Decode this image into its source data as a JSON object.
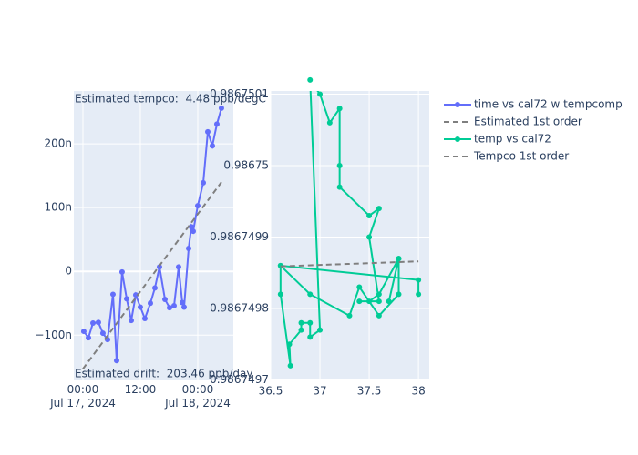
{
  "chart_data": [
    {
      "type": "line",
      "x_type": "date",
      "legend": "right",
      "grid": true,
      "xlim": [
        "2024-07-16T22:06",
        "2024-07-18T07:26"
      ],
      "xticks": [
        {
          "value": "2024-07-17T00:00",
          "label": "00:00\nJul 17, 2024"
        },
        {
          "value": "2024-07-17T12:00",
          "label": "12:00"
        },
        {
          "value": "2024-07-18T00:00",
          "label": "00:00\nJul 18, 2024"
        }
      ],
      "ylim": [
        -171,
        283
      ],
      "yticks": [
        {
          "value": -100,
          "label": "−100n"
        },
        0,
        {
          "value": 100,
          "label": "100n"
        },
        {
          "value": 200,
          "label": "200n"
        }
      ],
      "annotations": [
        "Estimated tempco:  4.48 ppb/degC",
        "Estimated drift:  203.46 ppb/day"
      ],
      "series": [
        {
          "name": "time vs cal72 w tempcomp",
          "color": "#636efa",
          "dash": false,
          "markers": true,
          "x": [
            "2024-07-17T00:11",
            "2024-07-17T01:09",
            "2024-07-17T02:06",
            "2024-07-17T03:14",
            "2024-07-17T04:11",
            "2024-07-17T05:09",
            "2024-07-17T06:17",
            "2024-07-17T07:03",
            "2024-07-17T08:11",
            "2024-07-17T09:09",
            "2024-07-17T10:06",
            "2024-07-17T11:03",
            "2024-07-17T12:00",
            "2024-07-17T12:57",
            "2024-07-17T14:06",
            "2024-07-17T15:03",
            "2024-07-17T16:00",
            "2024-07-17T17:09",
            "2024-07-17T18:06",
            "2024-07-17T19:03",
            "2024-07-17T20:00",
            "2024-07-17T20:46",
            "2024-07-17T21:09",
            "2024-07-17T22:06",
            "2024-07-17T22:40",
            "2024-07-17T23:03",
            "2024-07-18T00:00",
            "2024-07-18T01:09",
            "2024-07-18T02:06",
            "2024-07-18T03:03",
            "2024-07-18T04:00",
            "2024-07-18T04:57"
          ],
          "values": [
            -94,
            -104,
            -81,
            -80,
            -97,
            -107,
            -36,
            -140,
            -1,
            -43,
            -77,
            -37,
            -56,
            -74,
            -50,
            -26,
            7,
            -44,
            -57,
            -54,
            7,
            -49,
            -56,
            36,
            70,
            63,
            103,
            139,
            219,
            197,
            231,
            256
          ]
        },
        {
          "name": "Estimated 1st order",
          "color": "#7f7f7f",
          "dash": true,
          "markers": false,
          "x": [
            "2024-07-17T00:00",
            "2024-07-18T04:57"
          ],
          "values": [
            -153,
            140
          ]
        }
      ]
    },
    {
      "type": "line",
      "grid": true,
      "xlim": [
        36.5,
        38.11
      ],
      "xticks": [
        36.5,
        37,
        37.5,
        38
      ],
      "ylim": [
        0.9867496994,
        0.9867501045
      ],
      "yticks": [
        0.9867497,
        0.9867498,
        0.9867499,
        0.98675,
        0.9867501
      ],
      "series": [
        {
          "name": "temp vs cal72",
          "color": "#00cc96",
          "dash": false,
          "markers": true,
          "x": [
            36.6,
            36.6,
            36.7,
            36.69,
            36.81,
            36.81,
            36.9,
            36.9,
            37.0,
            36.9,
            37.0,
            37.1,
            37.2,
            37.2,
            37.2,
            37.5,
            37.6,
            37.5,
            37.6,
            37.4,
            37.5,
            37.6,
            37.8,
            37.7,
            37.8,
            37.8,
            37.6,
            37.4,
            37.3,
            36.9,
            36.6,
            38.0,
            38.0
          ],
          "values": [
            0.98674986,
            0.98674982,
            0.98674972,
            0.98674975,
            0.98674977,
            0.98674978,
            0.98674978,
            0.98674976,
            0.98674977,
            0.98675012,
            0.9867501,
            0.98675006,
            0.98675008,
            0.98675,
            0.98674997,
            0.98674993,
            0.98674994,
            0.9867499,
            0.98674981,
            0.98674981,
            0.98674981,
            0.98674982,
            0.98674987,
            0.98674981,
            0.98674987,
            0.98674982,
            0.98674979,
            0.98674983,
            0.98674979,
            0.98674982,
            0.98674986,
            0.98674984,
            0.98674982
          ]
        },
        {
          "name": "Tempco 1st order",
          "color": "#7f7f7f",
          "dash": true,
          "markers": false,
          "x": [
            36.6,
            38.0
          ],
          "values": [
            0.986749859,
            0.986749866
          ]
        }
      ]
    }
  ]
}
